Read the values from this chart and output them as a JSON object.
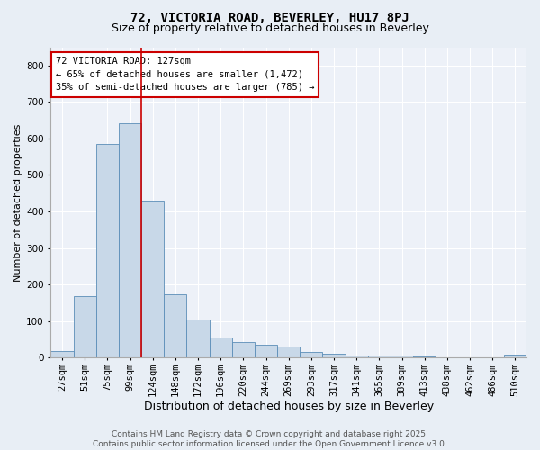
{
  "title": "72, VICTORIA ROAD, BEVERLEY, HU17 8PJ",
  "subtitle": "Size of property relative to detached houses in Beverley",
  "xlabel": "Distribution of detached houses by size in Beverley",
  "ylabel": "Number of detached properties",
  "categories": [
    "27sqm",
    "51sqm",
    "75sqm",
    "99sqm",
    "124sqm",
    "148sqm",
    "172sqm",
    "196sqm",
    "220sqm",
    "244sqm",
    "269sqm",
    "293sqm",
    "317sqm",
    "341sqm",
    "365sqm",
    "389sqm",
    "413sqm",
    "438sqm",
    "462sqm",
    "486sqm",
    "510sqm"
  ],
  "values": [
    18,
    168,
    585,
    642,
    430,
    173,
    103,
    55,
    42,
    35,
    30,
    16,
    10,
    5,
    5,
    5,
    4,
    1,
    1,
    1,
    7
  ],
  "bar_color": "#c8d8e8",
  "bar_edgecolor": "#5b8db8",
  "vline_color": "#cc0000",
  "vline_x_index": 3.5,
  "annotation_text": "72 VICTORIA ROAD: 127sqm\n← 65% of detached houses are smaller (1,472)\n35% of semi-detached houses are larger (785) →",
  "annotation_box_color": "#ffffff",
  "annotation_box_edgecolor": "#cc0000",
  "footer": "Contains HM Land Registry data © Crown copyright and database right 2025.\nContains public sector information licensed under the Open Government Licence v3.0.",
  "bg_color": "#e8eef5",
  "plot_bg_color": "#edf1f8",
  "grid_color": "#ffffff",
  "ylim": [
    0,
    850
  ],
  "title_fontsize": 10,
  "subtitle_fontsize": 9,
  "xlabel_fontsize": 9,
  "ylabel_fontsize": 8,
  "tick_fontsize": 7.5,
  "annotation_fontsize": 7.5,
  "footer_fontsize": 6.5
}
